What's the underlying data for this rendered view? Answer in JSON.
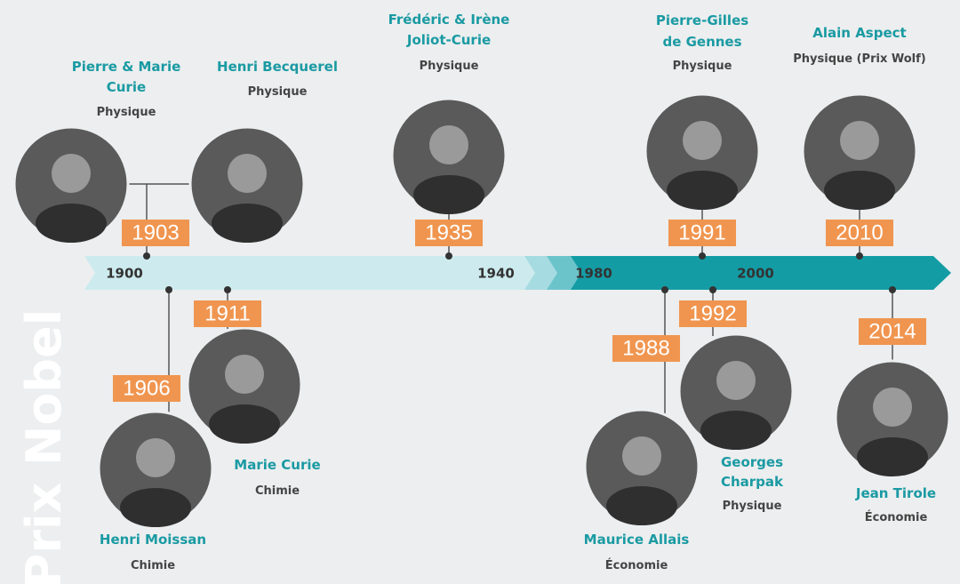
{
  "title": "Prix Nobel",
  "axis_labels": [
    "1900",
    "1940",
    "1980",
    "2000"
  ],
  "laureates": [
    {
      "name": [
        "Pierre & Marie",
        "Curie"
      ],
      "field": "Physique",
      "year": "1903"
    },
    {
      "name": [
        "Henri Becquerel"
      ],
      "field": "Physique",
      "year": null
    },
    {
      "name": [
        "Frédéric & Irène",
        "Joliot-Curie"
      ],
      "field": "Physique",
      "year": "1935"
    },
    {
      "name": [
        "Pierre-Gilles",
        "de Gennes"
      ],
      "field": "Physique",
      "year": "1991"
    },
    {
      "name": [
        "Alain Aspect"
      ],
      "field": "Physique (Prix Wolf)",
      "year": "2010"
    },
    {
      "name": [
        "Henri Moissan"
      ],
      "field": "Chimie",
      "year": "1906"
    },
    {
      "name": [
        "Marie Curie"
      ],
      "field": "Chimie",
      "year": "1911"
    },
    {
      "name": [
        "Maurice Allais"
      ],
      "field": "Économie",
      "year": "1988"
    },
    {
      "name": [
        "Georges",
        "Charpak"
      ],
      "field": "Physique",
      "year": "1992"
    },
    {
      "name": [
        "Jean Tirole"
      ],
      "field": "Économie",
      "year": "2014"
    }
  ]
}
